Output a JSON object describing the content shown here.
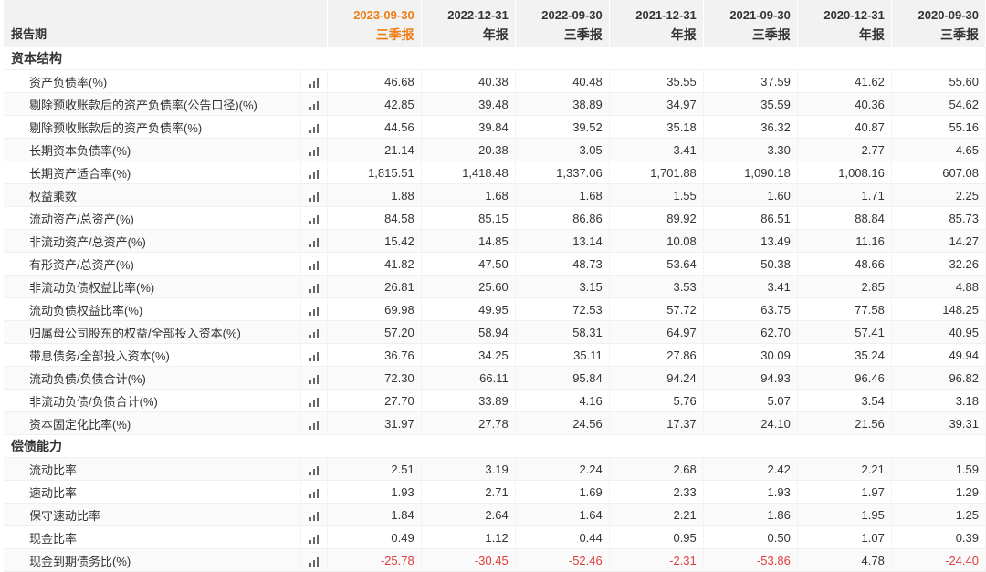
{
  "header": {
    "title": "报告期",
    "periods": [
      {
        "date": "2023-09-30",
        "type": "三季报",
        "highlight": true
      },
      {
        "date": "2022-12-31",
        "type": "年报",
        "highlight": false
      },
      {
        "date": "2022-09-30",
        "type": "三季报",
        "highlight": false
      },
      {
        "date": "2021-12-31",
        "type": "年报",
        "highlight": false
      },
      {
        "date": "2021-09-30",
        "type": "三季报",
        "highlight": false
      },
      {
        "date": "2020-12-31",
        "type": "年报",
        "highlight": false
      },
      {
        "date": "2020-09-30",
        "type": "三季报",
        "highlight": false
      }
    ]
  },
  "colors": {
    "highlight": "#ee7d16",
    "negative": "#e03c3c"
  },
  "chart_icon": "bar-chart-icon",
  "sections": [
    {
      "title": "资本结构",
      "rows": [
        {
          "label": "资产负债率(%)",
          "values": [
            "46.68",
            "40.38",
            "40.48",
            "35.55",
            "37.59",
            "41.62",
            "55.60"
          ]
        },
        {
          "label": "剔除预收账款后的资产负债率(公告口径)(%)",
          "values": [
            "42.85",
            "39.48",
            "38.89",
            "34.97",
            "35.59",
            "40.36",
            "54.62"
          ]
        },
        {
          "label": "剔除预收账款后的资产负债率(%)",
          "values": [
            "44.56",
            "39.84",
            "39.52",
            "35.18",
            "36.32",
            "40.87",
            "55.16"
          ]
        },
        {
          "label": "长期资本负债率(%)",
          "values": [
            "21.14",
            "20.38",
            "3.05",
            "3.41",
            "3.30",
            "2.77",
            "4.65"
          ]
        },
        {
          "label": "长期资产适合率(%)",
          "values": [
            "1,815.51",
            "1,418.48",
            "1,337.06",
            "1,701.88",
            "1,090.18",
            "1,008.16",
            "607.08"
          ]
        },
        {
          "label": "权益乘数",
          "values": [
            "1.88",
            "1.68",
            "1.68",
            "1.55",
            "1.60",
            "1.71",
            "2.25"
          ]
        },
        {
          "label": "流动资产/总资产(%)",
          "values": [
            "84.58",
            "85.15",
            "86.86",
            "89.92",
            "86.51",
            "88.84",
            "85.73"
          ]
        },
        {
          "label": "非流动资产/总资产(%)",
          "values": [
            "15.42",
            "14.85",
            "13.14",
            "10.08",
            "13.49",
            "11.16",
            "14.27"
          ]
        },
        {
          "label": "有形资产/总资产(%)",
          "values": [
            "41.82",
            "47.50",
            "48.73",
            "53.64",
            "50.38",
            "48.66",
            "32.26"
          ]
        },
        {
          "label": "非流动负债权益比率(%)",
          "values": [
            "26.81",
            "25.60",
            "3.15",
            "3.53",
            "3.41",
            "2.85",
            "4.88"
          ]
        },
        {
          "label": "流动负债权益比率(%)",
          "values": [
            "69.98",
            "49.95",
            "72.53",
            "57.72",
            "63.75",
            "77.58",
            "148.25"
          ]
        },
        {
          "label": "归属母公司股东的权益/全部投入资本(%)",
          "values": [
            "57.20",
            "58.94",
            "58.31",
            "64.97",
            "62.70",
            "57.41",
            "40.95"
          ]
        },
        {
          "label": "带息债务/全部投入资本(%)",
          "values": [
            "36.76",
            "34.25",
            "35.11",
            "27.86",
            "30.09",
            "35.24",
            "49.94"
          ]
        },
        {
          "label": "流动负债/负债合计(%)",
          "values": [
            "72.30",
            "66.11",
            "95.84",
            "94.24",
            "94.93",
            "96.46",
            "96.82"
          ]
        },
        {
          "label": "非流动负债/负债合计(%)",
          "values": [
            "27.70",
            "33.89",
            "4.16",
            "5.76",
            "5.07",
            "3.54",
            "3.18"
          ]
        },
        {
          "label": "资本固定化比率(%)",
          "values": [
            "31.97",
            "27.78",
            "24.56",
            "17.37",
            "24.10",
            "21.56",
            "39.31"
          ]
        }
      ]
    },
    {
      "title": "偿债能力",
      "rows": [
        {
          "label": "流动比率",
          "values": [
            "2.51",
            "3.19",
            "2.24",
            "2.68",
            "2.42",
            "2.21",
            "1.59"
          ]
        },
        {
          "label": "速动比率",
          "values": [
            "1.93",
            "2.71",
            "1.69",
            "2.33",
            "1.93",
            "1.97",
            "1.29"
          ]
        },
        {
          "label": "保守速动比率",
          "values": [
            "1.84",
            "2.64",
            "1.64",
            "2.21",
            "1.86",
            "1.95",
            "1.25"
          ]
        },
        {
          "label": "现金比率",
          "values": [
            "0.49",
            "1.12",
            "0.44",
            "0.95",
            "0.50",
            "1.07",
            "0.39"
          ]
        },
        {
          "label": "现金到期债务比(%)",
          "values": [
            "-25.78",
            "-30.45",
            "-52.46",
            "-2.31",
            "-53.86",
            "4.78",
            "-24.40"
          ]
        }
      ]
    }
  ]
}
